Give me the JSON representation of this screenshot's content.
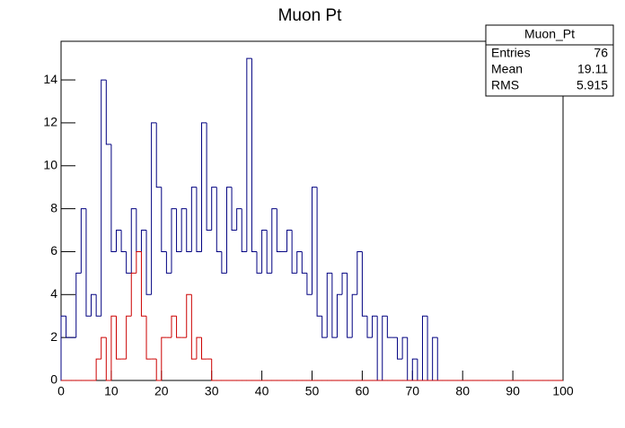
{
  "chart_data": {
    "type": "histogram",
    "title": "Muon Pt",
    "bins": [
      0,
      1,
      2,
      3,
      4,
      5,
      6,
      7,
      8,
      9,
      10,
      11,
      12,
      13,
      14,
      15,
      16,
      17,
      18,
      19,
      20,
      21,
      22,
      23,
      24,
      25,
      26,
      27,
      28,
      29,
      30,
      31,
      32,
      33,
      34,
      35,
      36,
      37,
      38,
      39,
      40,
      41,
      42,
      43,
      44,
      45,
      46,
      47,
      48,
      49,
      50,
      51,
      52,
      53,
      54,
      55,
      56,
      57,
      58,
      59,
      60,
      61,
      62,
      63,
      64,
      65,
      66,
      67,
      68,
      69,
      70,
      71,
      72,
      73,
      74,
      75,
      76,
      77,
      78,
      79,
      80,
      81,
      82,
      83,
      84,
      85,
      86,
      87,
      88,
      89,
      90,
      91,
      92,
      93,
      94,
      95,
      96,
      97,
      98,
      99,
      100
    ],
    "series": [
      {
        "color": "#000080",
        "values": [
          3,
          2,
          2,
          5,
          8,
          3,
          4,
          3,
          14,
          11,
          6,
          7,
          6,
          5,
          8,
          6,
          7,
          4,
          12,
          9,
          6,
          5,
          8,
          6,
          8,
          6,
          9,
          6,
          12,
          7,
          9,
          6,
          5,
          9,
          7,
          8,
          6,
          15,
          6,
          5,
          7,
          5,
          8,
          6,
          6,
          7,
          5,
          6,
          5,
          4,
          9,
          3,
          2,
          5,
          2,
          4,
          5,
          2,
          4,
          6,
          3,
          2,
          3,
          0,
          3,
          2,
          2,
          1,
          2,
          0,
          1,
          0,
          3,
          0,
          2,
          0,
          0,
          0,
          0,
          0,
          0,
          0,
          0,
          0,
          0,
          0,
          0,
          0,
          0,
          0,
          0,
          0,
          0,
          0,
          0,
          0,
          0,
          0,
          0,
          0
        ]
      },
      {
        "color": "#cc0000",
        "values": [
          0,
          0,
          0,
          0,
          0,
          0,
          0,
          1,
          2,
          0,
          3,
          1,
          1,
          3,
          5,
          6,
          3,
          1,
          1,
          0,
          2,
          2,
          3,
          2,
          2,
          4,
          1,
          2,
          1,
          1,
          0,
          0,
          0,
          0,
          0,
          0,
          0,
          0,
          0,
          0,
          0,
          0,
          0,
          0,
          0,
          0,
          0,
          0,
          0,
          0,
          0,
          0,
          0,
          0,
          0,
          0,
          0,
          0,
          0,
          0,
          0,
          0,
          0,
          0,
          0,
          0,
          0,
          0,
          0,
          0,
          0,
          0,
          0,
          0,
          0,
          0,
          0,
          0,
          0,
          0,
          0,
          0,
          0,
          0,
          0,
          0,
          0,
          0,
          0,
          0,
          0,
          0,
          0,
          0,
          0,
          0,
          0,
          0,
          0,
          0
        ]
      }
    ],
    "xlim": [
      0,
      100
    ],
    "xticks": [
      0,
      10,
      20,
      30,
      40,
      50,
      60,
      70,
      80,
      90,
      100
    ],
    "ylim": [
      0,
      15.8
    ],
    "yticks": [
      0,
      2,
      4,
      6,
      8,
      10,
      12,
      14
    ],
    "stats": {
      "title": "Muon_Pt",
      "rows": [
        [
          "Entries",
          76
        ],
        [
          "Mean",
          19.11
        ],
        [
          "RMS",
          5.915
        ]
      ]
    }
  }
}
